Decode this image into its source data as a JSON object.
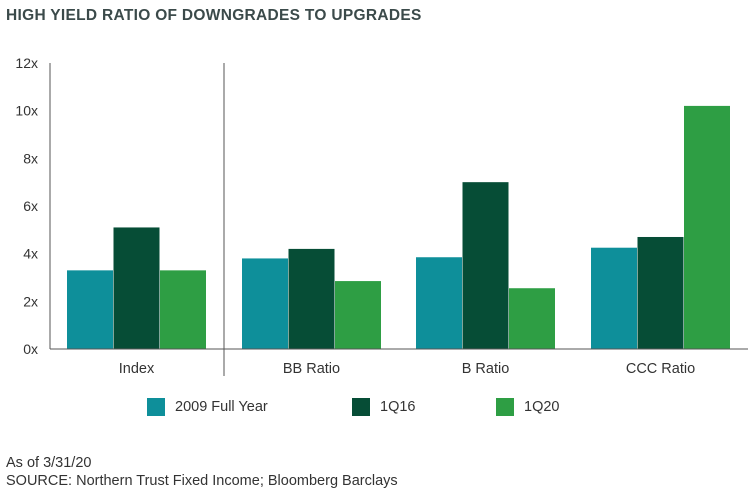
{
  "title": "HIGH YIELD RATIO OF DOWNGRADES TO UPGRADES",
  "chart_data": {
    "type": "bar",
    "title": "HIGH YIELD RATIO OF DOWNGRADES TO UPGRADES",
    "categories": [
      "Index",
      "BB Ratio",
      "B Ratio",
      "CCC Ratio"
    ],
    "series": [
      {
        "name": "2009 Full Year",
        "color": "#0e8f9a",
        "values": [
          3.3,
          3.8,
          3.85,
          4.25
        ]
      },
      {
        "name": "1Q16",
        "color": "#064d36",
        "values": [
          5.1,
          4.2,
          7.0,
          4.7
        ]
      },
      {
        "name": "1Q20",
        "color": "#2e9e44",
        "values": [
          3.3,
          2.85,
          2.55,
          10.2
        ]
      }
    ],
    "ylim": [
      0,
      12
    ],
    "yticks": [
      0,
      2,
      4,
      6,
      8,
      10,
      12
    ],
    "ytick_labels": [
      "0x",
      "2x",
      "4x",
      "6x",
      "8x",
      "10x",
      "12x"
    ],
    "grid": false,
    "legend_position": "bottom"
  },
  "footnotes": {
    "as_of": "As of 3/31/20",
    "source": "SOURCE: Northern Trust Fixed Income; Bloomberg Barclays"
  }
}
